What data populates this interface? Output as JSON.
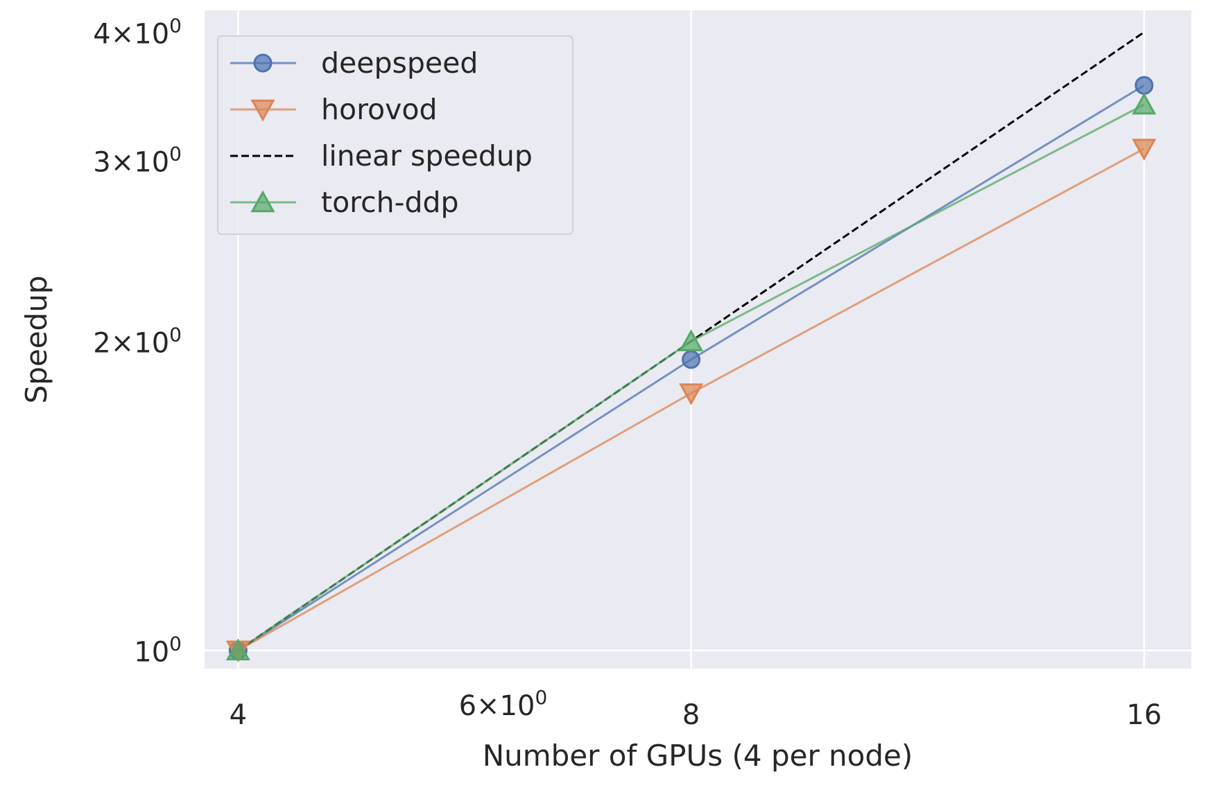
{
  "chart_data": {
    "type": "line",
    "xlabel": "Number of GPUs (4 per node)",
    "ylabel": "Speedup",
    "x_scale": "log",
    "y_scale": "log",
    "xlim": [
      3.8,
      17.2
    ],
    "ylim": [
      0.96,
      4.2
    ],
    "grid": true,
    "legend_position": "upper-left",
    "x_ticks": [
      {
        "value": 4,
        "label": "4"
      },
      {
        "value": 6,
        "label": "6×10",
        "exp": "0"
      },
      {
        "value": 8,
        "label": "8"
      },
      {
        "value": 16,
        "label": "16"
      }
    ],
    "y_ticks": [
      {
        "value": 1,
        "label": "10",
        "exp": "0"
      },
      {
        "value": 2,
        "label": "2×10",
        "exp": "0"
      },
      {
        "value": 3,
        "label": "3×10",
        "exp": "0"
      },
      {
        "value": 4,
        "label": "4×10",
        "exp": "0"
      }
    ],
    "x_grid": [
      4,
      8,
      16
    ],
    "y_grid": [
      1
    ],
    "background": "#eaeaf2",
    "series": [
      {
        "name": "deepspeed",
        "x": [
          4,
          8,
          16
        ],
        "y": [
          1.0,
          1.92,
          3.55
        ],
        "color": "#4c72b0",
        "marker": "circle",
        "dashed": false
      },
      {
        "name": "horovod",
        "x": [
          4,
          8,
          16
        ],
        "y": [
          1.0,
          1.78,
          3.08
        ],
        "color": "#dd8452",
        "marker": "triangle-down",
        "dashed": false
      },
      {
        "name": "linear speedup",
        "x": [
          4,
          8,
          16
        ],
        "y": [
          1.0,
          2.0,
          4.0
        ],
        "color": "#000000",
        "marker": "none",
        "dashed": true
      },
      {
        "name": "torch-ddp",
        "x": [
          4,
          8,
          16
        ],
        "y": [
          1.0,
          2.0,
          3.4
        ],
        "color": "#55a868",
        "marker": "triangle-up",
        "dashed": false
      }
    ]
  }
}
